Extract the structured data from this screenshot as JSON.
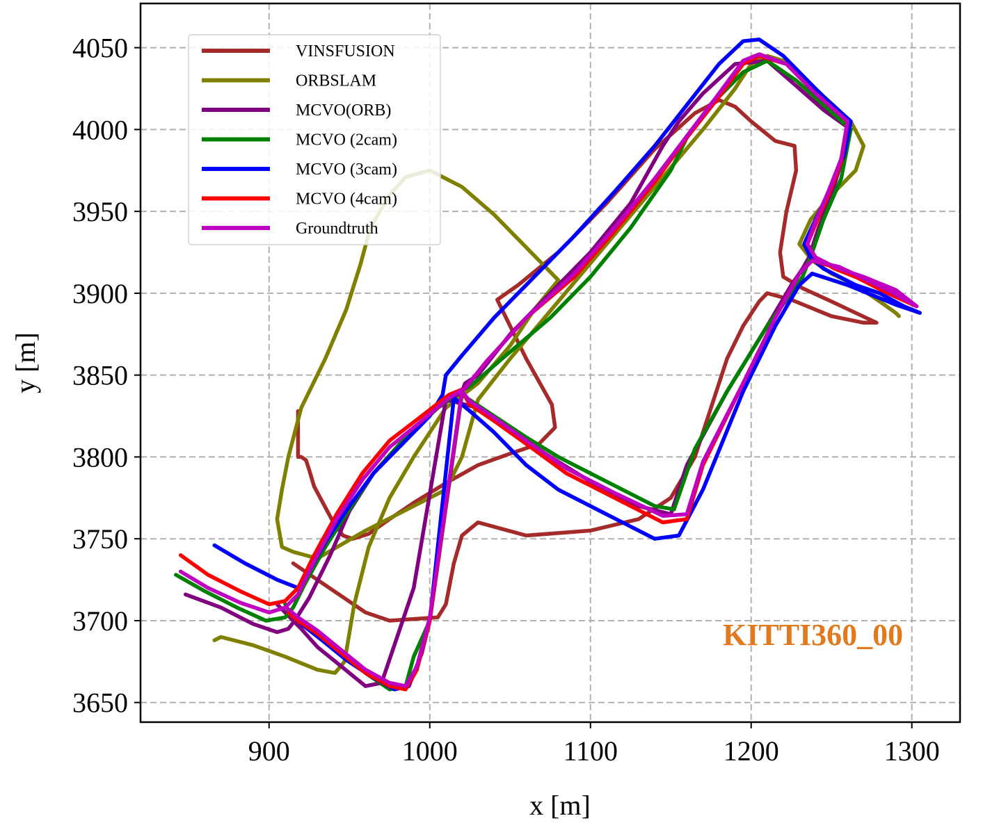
{
  "chart_data": {
    "type": "line",
    "title": "",
    "xlabel": "x [m]",
    "ylabel": "y [m]",
    "xlim": [
      820,
      1330
    ],
    "ylim": [
      3638,
      4077
    ],
    "xticks": [
      900,
      1000,
      1100,
      1200,
      1300
    ],
    "yticks": [
      3650,
      3700,
      3750,
      3800,
      3850,
      3900,
      3950,
      4000,
      4050
    ],
    "xtick_labels": [
      "900",
      "1000",
      "1100",
      "1200",
      "1300"
    ],
    "ytick_labels": [
      "3650",
      "3700",
      "3750",
      "3800",
      "3850",
      "3900",
      "3950",
      "4000",
      "4050"
    ],
    "grid": true,
    "legend_position": "top-left",
    "annotation": {
      "text": "KITTI360_00",
      "color": "#e07a1e",
      "x": 1230,
      "y": 3690
    },
    "series": [
      {
        "name": "VINSFUSION",
        "color": "#a52a2a",
        "x": [
          918,
          918,
          920,
          923,
          925,
          928,
          940,
          946,
          952,
          962,
          975,
          990,
          1010,
          1030,
          1050,
          1068,
          1078,
          1076,
          1060,
          1045,
          1042,
          1055,
          1080,
          1110,
          1140,
          1165,
          1180,
          1190,
          1200,
          1215,
          1227,
          1228,
          1222,
          1218,
          1220,
          1232,
          1250,
          1265,
          1278,
          1270,
          1250,
          1225,
          1210,
          1205,
          1195,
          1185,
          1175,
          1165,
          1150,
          1130,
          1100,
          1060,
          1030,
          1020,
          1015,
          1010,
          1005,
          990,
          975,
          960,
          945,
          930,
          915
        ],
        "y": [
          3828,
          3800,
          3800,
          3798,
          3792,
          3782,
          3760,
          3752,
          3750,
          3753,
          3762,
          3772,
          3784,
          3795,
          3802,
          3808,
          3818,
          3832,
          3860,
          3890,
          3896,
          3905,
          3925,
          3955,
          3988,
          4010,
          4018,
          4014,
          4005,
          3993,
          3990,
          3975,
          3950,
          3925,
          3910,
          3903,
          3895,
          3888,
          3882,
          3882,
          3886,
          3896,
          3900,
          3895,
          3880,
          3860,
          3830,
          3800,
          3775,
          3762,
          3755,
          3752,
          3760,
          3752,
          3735,
          3710,
          3702,
          3701,
          3700,
          3705,
          3715,
          3725,
          3735
        ]
      },
      {
        "name": "ORBSLAM",
        "color": "#808000",
        "x": [
          866,
          870,
          890,
          910,
          930,
          941,
          947,
          953,
          962,
          975,
          990,
          1010,
          1030,
          1050,
          1065,
          1080,
          1060,
          1040,
          1020,
          1000,
          985,
          975,
          963,
          957,
          948,
          935,
          920,
          912,
          908,
          905,
          908,
          915,
          930,
          960,
          990,
          1010,
          1020,
          1030,
          1050,
          1080,
          1110,
          1140,
          1170,
          1190,
          1200,
          1210,
          1220,
          1240,
          1262,
          1270,
          1265,
          1250,
          1237,
          1230,
          1238,
          1250,
          1265,
          1280,
          1290,
          1292
        ],
        "y": [
          3688,
          3690,
          3685,
          3678,
          3670,
          3668,
          3675,
          3710,
          3745,
          3775,
          3800,
          3830,
          3845,
          3868,
          3890,
          3908,
          3928,
          3948,
          3965,
          3975,
          3971,
          3960,
          3940,
          3918,
          3890,
          3860,
          3830,
          3800,
          3780,
          3762,
          3745,
          3742,
          3738,
          3755,
          3770,
          3780,
          3800,
          3835,
          3860,
          3895,
          3930,
          3965,
          4000,
          4025,
          4040,
          4045,
          4042,
          4025,
          4005,
          3990,
          3975,
          3960,
          3945,
          3930,
          3920,
          3912,
          3905,
          3895,
          3888,
          3886
        ]
      },
      {
        "name": "MCVO(ORB)",
        "color": "#800080",
        "x": [
          848,
          870,
          890,
          905,
          912,
          916,
          925,
          938,
          950,
          965,
          985,
          1005,
          1020,
          1022,
          1030,
          1050,
          1075,
          1100,
          1125,
          1145,
          1155,
          1170,
          1190,
          1210,
          1230,
          1245,
          1262,
          1256,
          1250,
          1242,
          1236,
          1232,
          1225,
          1210,
          1185,
          1160,
          1150,
          1130,
          1100,
          1075,
          1050,
          1030,
          1010,
          990,
          978,
          970,
          960,
          945,
          930,
          920,
          913,
          910,
          905
        ],
        "y": [
          3716,
          3708,
          3698,
          3693,
          3695,
          3700,
          3714,
          3740,
          3767,
          3790,
          3812,
          3830,
          3840,
          3845,
          3850,
          3875,
          3900,
          3925,
          3955,
          3990,
          4005,
          4022,
          4040,
          4042,
          4025,
          4012,
          4000,
          3980,
          3960,
          3940,
          3922,
          3915,
          3905,
          3880,
          3840,
          3795,
          3765,
          3770,
          3785,
          3800,
          3815,
          3830,
          3835,
          3720,
          3685,
          3662,
          3660,
          3672,
          3684,
          3695,
          3702,
          3705,
          3710
        ]
      },
      {
        "name": "MCVO  (2cam)",
        "color": "#008000",
        "x": [
          842,
          860,
          880,
          898,
          910,
          915,
          922,
          935,
          950,
          965,
          985,
          1005,
          1018,
          1025,
          1045,
          1075,
          1100,
          1125,
          1150,
          1160,
          1175,
          1195,
          1210,
          1228,
          1245,
          1262,
          1256,
          1245,
          1238,
          1232,
          1225,
          1210,
          1185,
          1165,
          1152,
          1140,
          1110,
          1080,
          1060,
          1040,
          1020,
          1000,
          990,
          985,
          975,
          960,
          945,
          930,
          918,
          912,
          910
        ],
        "y": [
          3728,
          3718,
          3708,
          3700,
          3702,
          3708,
          3722,
          3745,
          3768,
          3790,
          3812,
          3830,
          3840,
          3843,
          3860,
          3885,
          3910,
          3940,
          3975,
          3995,
          4015,
          4035,
          4042,
          4030,
          4015,
          4000,
          3970,
          3945,
          3925,
          3910,
          3900,
          3880,
          3840,
          3805,
          3768,
          3770,
          3785,
          3800,
          3812,
          3825,
          3838,
          3700,
          3678,
          3660,
          3658,
          3668,
          3680,
          3692,
          3700,
          3706,
          3710
        ]
      },
      {
        "name": "MCVO  (3cam)",
        "color": "#0000ff",
        "x": [
          866,
          885,
          905,
          918,
          925,
          935,
          950,
          965,
          985,
          1000,
          1008,
          1010,
          1020,
          1040,
          1065,
          1090,
          1115,
          1140,
          1160,
          1180,
          1195,
          1205,
          1220,
          1245,
          1262,
          1258,
          1250,
          1240,
          1233,
          1237,
          1245,
          1265,
          1280,
          1295,
          1305,
          1290,
          1260,
          1238,
          1230,
          1215,
          1195,
          1170,
          1155,
          1140,
          1110,
          1080,
          1060,
          1040,
          1025,
          1015,
          1000,
          995,
          987,
          978,
          965,
          948,
          933,
          920,
          915
        ],
        "y": [
          3746,
          3735,
          3725,
          3720,
          3730,
          3748,
          3770,
          3790,
          3810,
          3825,
          3838,
          3850,
          3862,
          3885,
          3910,
          3935,
          3962,
          3990,
          4015,
          4040,
          4054,
          4055,
          4045,
          4020,
          4005,
          3985,
          3965,
          3945,
          3930,
          3922,
          3915,
          3905,
          3900,
          3892,
          3888,
          3893,
          3905,
          3912,
          3905,
          3880,
          3840,
          3780,
          3752,
          3750,
          3765,
          3780,
          3795,
          3815,
          3828,
          3836,
          3700,
          3680,
          3660,
          3658,
          3665,
          3676,
          3688,
          3698,
          3704
        ]
      },
      {
        "name": "MCVO  (4cam)",
        "color": "#ff0000",
        "x": [
          845,
          862,
          882,
          900,
          910,
          918,
          928,
          942,
          958,
          975,
          995,
          1012,
          1022,
          1035,
          1060,
          1090,
          1115,
          1140,
          1160,
          1180,
          1195,
          1205,
          1222,
          1240,
          1260,
          1256,
          1248,
          1240,
          1235,
          1240,
          1252,
          1270,
          1290,
          1303,
          1285,
          1255,
          1238,
          1230,
          1215,
          1195,
          1170,
          1160,
          1145,
          1115,
          1085,
          1060,
          1040,
          1025,
          1020,
          1000,
          992,
          985,
          975,
          960,
          945,
          930,
          918,
          912
        ],
        "y": [
          3740,
          3728,
          3718,
          3710,
          3712,
          3720,
          3740,
          3765,
          3790,
          3810,
          3825,
          3838,
          3842,
          3858,
          3885,
          3910,
          3938,
          3968,
          3995,
          4020,
          4040,
          4045,
          4040,
          4022,
          4005,
          3980,
          3960,
          3942,
          3930,
          3922,
          3915,
          3908,
          3900,
          3892,
          3900,
          3915,
          3920,
          3912,
          3885,
          3845,
          3795,
          3762,
          3760,
          3775,
          3790,
          3808,
          3822,
          3832,
          3840,
          3700,
          3670,
          3658,
          3660,
          3668,
          3680,
          3692,
          3700,
          3705
        ]
      },
      {
        "name": "Groundtruth",
        "color": "#c000c0",
        "x": [
          845,
          862,
          882,
          900,
          910,
          918,
          928,
          942,
          958,
          975,
          995,
          1012,
          1022,
          1035,
          1060,
          1090,
          1115,
          1140,
          1160,
          1180,
          1195,
          1205,
          1222,
          1240,
          1260,
          1256,
          1248,
          1240,
          1235,
          1240,
          1252,
          1270,
          1290,
          1303,
          1285,
          1255,
          1238,
          1230,
          1215,
          1195,
          1170,
          1160,
          1145,
          1115,
          1085,
          1060,
          1040,
          1025,
          1020,
          1000,
          992,
          985,
          975,
          960,
          945,
          930,
          918,
          912
        ],
        "y": [
          3730,
          3720,
          3711,
          3705,
          3708,
          3716,
          3736,
          3762,
          3786,
          3806,
          3822,
          3836,
          3842,
          3858,
          3885,
          3912,
          3940,
          3970,
          3996,
          4022,
          4042,
          4046,
          4040,
          4022,
          4005,
          3982,
          3962,
          3944,
          3930,
          3922,
          3916,
          3910,
          3902,
          3892,
          3902,
          3916,
          3920,
          3912,
          3885,
          3845,
          3797,
          3765,
          3764,
          3778,
          3793,
          3810,
          3824,
          3834,
          3840,
          3702,
          3672,
          3660,
          3662,
          3670,
          3682,
          3694,
          3702,
          3707
        ]
      }
    ]
  }
}
